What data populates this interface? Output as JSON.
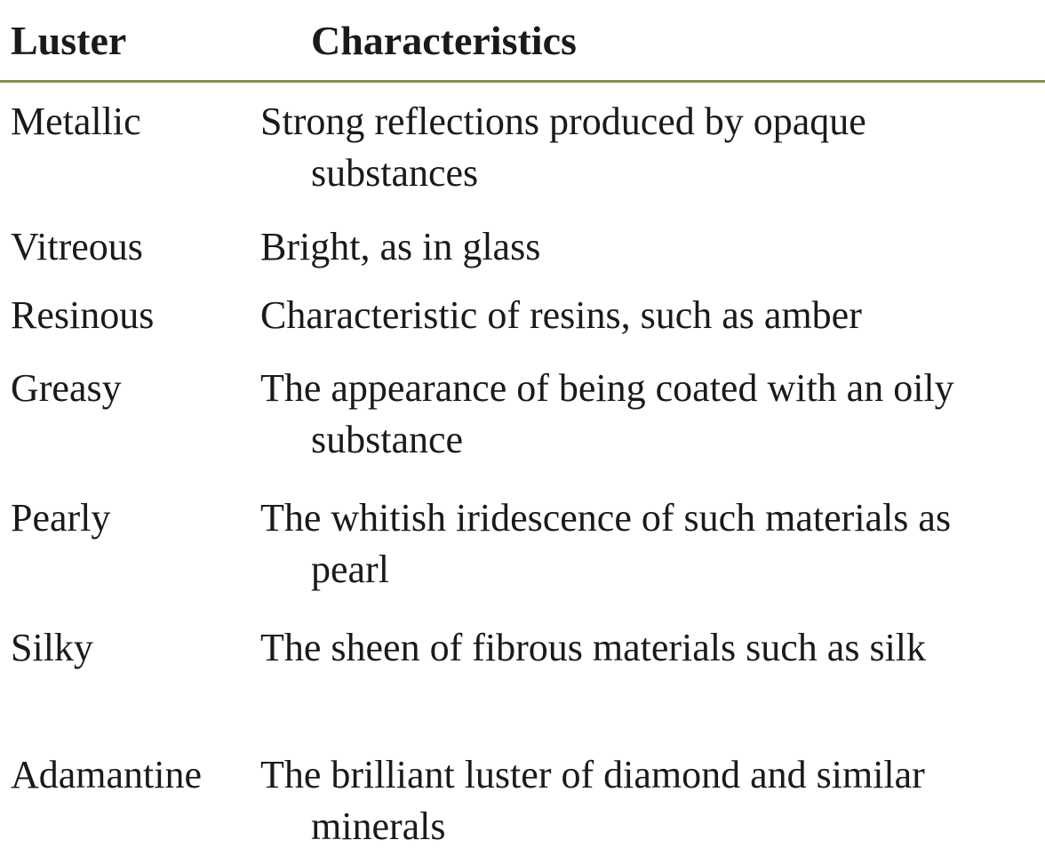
{
  "table": {
    "headers": {
      "luster": "Luster",
      "characteristics": "Characteristics"
    },
    "rows": [
      {
        "luster": "Metallic",
        "characteristics": "Strong reflections produced by opaque substances"
      },
      {
        "luster": "Vitreous",
        "characteristics": "Bright, as in glass"
      },
      {
        "luster": "Resinous",
        "characteristics": "Characteristic of resins, such as amber"
      },
      {
        "luster": "Greasy",
        "characteristics": "The appearance of being coated with an oily substance"
      },
      {
        "luster": "Pearly",
        "characteristics": "The whitish iridescence of such materials as pearl"
      },
      {
        "luster": "Silky",
        "characteristics": "The sheen of fibrous materials such as silk"
      },
      {
        "luster": "Adamantine",
        "characteristics": "The brilliant luster of diamond and similar minerals"
      }
    ]
  },
  "colors": {
    "header_rule": "#8b8d4a",
    "text": "#1a1a1a"
  }
}
